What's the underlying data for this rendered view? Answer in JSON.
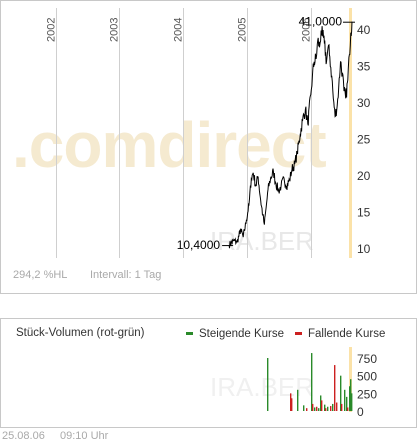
{
  "chart_data": [
    {
      "type": "line",
      "title": "",
      "xlabel": "",
      "ylabel": "",
      "x_ticks": [
        "2002",
        "2003",
        "2004",
        "2005",
        "2006"
      ],
      "xlim": [
        "2001-05-01",
        "2006-08-25"
      ],
      "ylim": [
        8,
        42
      ],
      "y_ticks": [
        10,
        15,
        20,
        25,
        30,
        35,
        40
      ],
      "grid": true,
      "annotations": {
        "low": "10,4000",
        "high": "41,0000"
      },
      "series": [
        {
          "color": "#000000",
          "points": [
            [
              "2004-09-20",
              10.4
            ],
            [
              "2004-10-15",
              11.0
            ],
            [
              "2004-11-05",
              10.8
            ],
            [
              "2004-11-25",
              12.5
            ],
            [
              "2004-12-10",
              11.5
            ],
            [
              "2004-12-28",
              13.8
            ],
            [
              "2005-01-12",
              16.0
            ],
            [
              "2005-01-25",
              19.5
            ],
            [
              "2005-02-05",
              20.3
            ],
            [
              "2005-02-20",
              18.5
            ],
            [
              "2005-03-05",
              19.8
            ],
            [
              "2005-03-20",
              16.5
            ],
            [
              "2005-04-01",
              14.5
            ],
            [
              "2005-04-10",
              13.2
            ],
            [
              "2005-04-20",
              15.5
            ],
            [
              "2005-05-01",
              18.0
            ],
            [
              "2005-05-15",
              19.5
            ],
            [
              "2005-06-01",
              20.5
            ],
            [
              "2005-06-15",
              18.8
            ],
            [
              "2005-07-01",
              17.8
            ],
            [
              "2005-07-15",
              18.5
            ],
            [
              "2005-08-01",
              19.5
            ],
            [
              "2005-08-15",
              18.5
            ],
            [
              "2005-09-01",
              19.3
            ],
            [
              "2005-09-15",
              20.8
            ],
            [
              "2005-10-01",
              21.5
            ],
            [
              "2005-10-15",
              23.0
            ],
            [
              "2005-11-01",
              25.5
            ],
            [
              "2005-11-15",
              27.5
            ],
            [
              "2005-12-01",
              29.0
            ],
            [
              "2005-12-15",
              27.0
            ],
            [
              "2006-01-01",
              31.0
            ],
            [
              "2006-01-10",
              33.5
            ],
            [
              "2006-01-20",
              35.5
            ],
            [
              "2006-02-01",
              36.0
            ],
            [
              "2006-02-10",
              38.5
            ],
            [
              "2006-02-20",
              37.5
            ],
            [
              "2006-03-01",
              39.8
            ],
            [
              "2006-03-10",
              39.0
            ],
            [
              "2006-03-20",
              38.0
            ],
            [
              "2006-04-01",
              35.5
            ],
            [
              "2006-04-10",
              37.5
            ],
            [
              "2006-04-20",
              36.2
            ],
            [
              "2006-05-01",
              33.5
            ],
            [
              "2006-05-10",
              30.5
            ],
            [
              "2006-05-20",
              28.0
            ],
            [
              "2006-06-01",
              29.5
            ],
            [
              "2006-06-10",
              32.0
            ],
            [
              "2006-06-20",
              35.5
            ],
            [
              "2006-07-01",
              34.0
            ],
            [
              "2006-07-10",
              31.5
            ],
            [
              "2006-07-20",
              30.5
            ],
            [
              "2006-08-01",
              33.0
            ],
            [
              "2006-08-10",
              36.5
            ],
            [
              "2006-08-18",
              39.5
            ],
            [
              "2006-08-25",
              41.0
            ]
          ]
        }
      ],
      "footer": {
        "change": "294,2 %HL",
        "interval": "Intervall: 1 Tag"
      },
      "watermark": {
        "brand": ".comdirect",
        "exchange": "IRA.BER"
      }
    },
    {
      "type": "bar",
      "title": "Stück-Volumen (rot-grün)",
      "xlim": [
        "2001-05-01",
        "2006-08-25"
      ],
      "ylim": [
        0,
        900
      ],
      "y_ticks": [
        0,
        250,
        500,
        750
      ],
      "legend_position": "top-right",
      "series": [
        {
          "name": "Steigende Kurse",
          "color": "#2a8a2a",
          "bars": [
            [
              "2005-04-25",
              750
            ],
            [
              "2005-10-12",
              300
            ],
            [
              "2005-11-20",
              80
            ],
            [
              "2006-01-02",
              820
            ],
            [
              "2006-01-18",
              50
            ],
            [
              "2006-02-10",
              40
            ],
            [
              "2006-02-25",
              220
            ],
            [
              "2006-03-15",
              90
            ],
            [
              "2006-04-02",
              60
            ],
            [
              "2006-05-05",
              100
            ],
            [
              "2006-06-15",
              500
            ],
            [
              "2006-07-10",
              300
            ],
            [
              "2006-07-20",
              200
            ],
            [
              "2006-08-05",
              350
            ],
            [
              "2006-08-15",
              450
            ],
            [
              "2006-08-22",
              250
            ]
          ]
        },
        {
          "name": "Fallende Kurse",
          "color": "#cc2020",
          "bars": [
            [
              "2005-09-02",
              250
            ],
            [
              "2005-09-08",
              180
            ],
            [
              "2005-12-05",
              40
            ],
            [
              "2006-01-10",
              100
            ],
            [
              "2006-02-01",
              60
            ],
            [
              "2006-03-01",
              150
            ],
            [
              "2006-03-25",
              40
            ],
            [
              "2006-04-20",
              70
            ],
            [
              "2006-05-15",
              650
            ],
            [
              "2006-05-25",
              120
            ],
            [
              "2006-06-25",
              100
            ],
            [
              "2006-07-28",
              50
            ]
          ]
        }
      ],
      "footer": {
        "date": "25.08.06",
        "time": "09:10 Uhr"
      },
      "watermark": {
        "exchange": "IRA.BER"
      }
    }
  ],
  "colors": {
    "line": "#000000",
    "gridline": "#cfcfcf",
    "highlight": "#fbe2a8",
    "watermark": "#f5e8c8",
    "rising": "#2a8a2a",
    "falling": "#cc2020"
  }
}
